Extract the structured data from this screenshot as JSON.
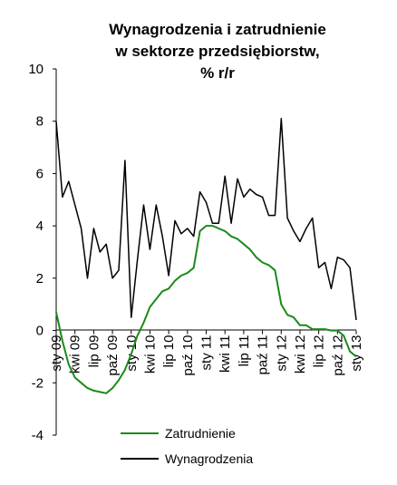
{
  "chart_data": {
    "type": "line",
    "title": [
      "Wynagrodzenia i zatrudnienie",
      "w sektorze przedsiębiorstw,",
      "% r/r"
    ],
    "ylim": [
      -4,
      10
    ],
    "yticks": [
      "-4",
      "-2",
      "0",
      "2",
      "4",
      "6",
      "8",
      "10"
    ],
    "x_tick_labels": [
      "sty 09",
      "kwi 09",
      "lip 09",
      "paź 09",
      "sty 10",
      "kwi 10",
      "lip 10",
      "paź 10",
      "sty 11",
      "kwi 11",
      "lip 11",
      "paź 11",
      "sty 12",
      "kwi 12",
      "lip 12",
      "paź 12",
      "sty 13"
    ],
    "grid": false,
    "legend_position": "bottom",
    "x_months": 49,
    "series": [
      {
        "name": "Zatrudnienie",
        "color": "#1a8a1a",
        "values": [
          0.7,
          -0.4,
          -1.3,
          -1.8,
          -2.0,
          -2.2,
          -2.3,
          -2.35,
          -2.4,
          -2.2,
          -1.9,
          -1.5,
          -0.9,
          -0.2,
          0.3,
          0.9,
          1.2,
          1.5,
          1.6,
          1.9,
          2.1,
          2.2,
          2.4,
          3.8,
          4.0,
          4.0,
          3.9,
          3.8,
          3.6,
          3.5,
          3.3,
          3.1,
          2.8,
          2.6,
          2.5,
          2.3,
          1.0,
          0.6,
          0.5,
          0.2,
          0.2,
          0.05,
          0.05,
          0.05,
          0.0,
          0.0,
          -0.2,
          -0.8,
          -1.0
        ]
      },
      {
        "name": "Wynagrodzenia",
        "color": "#000000",
        "values": [
          8.0,
          5.1,
          5.7,
          4.8,
          3.9,
          2.0,
          3.9,
          3.0,
          3.3,
          2.0,
          2.3,
          6.5,
          0.5,
          2.7,
          4.8,
          3.1,
          4.8,
          3.6,
          2.1,
          4.2,
          3.7,
          3.9,
          3.6,
          5.3,
          4.9,
          4.1,
          4.1,
          5.9,
          4.1,
          5.8,
          5.1,
          5.4,
          5.2,
          5.1,
          4.4,
          4.4,
          8.1,
          4.3,
          3.8,
          3.4,
          3.9,
          4.3,
          2.4,
          2.6,
          1.6,
          2.8,
          2.7,
          2.4,
          0.4
        ]
      }
    ]
  }
}
